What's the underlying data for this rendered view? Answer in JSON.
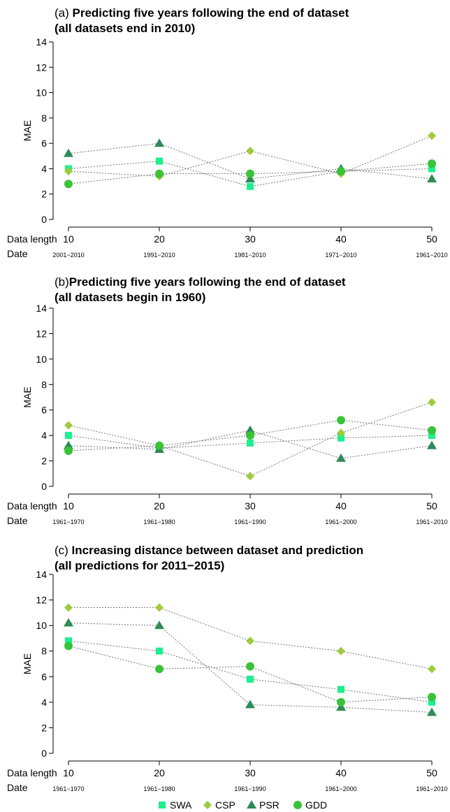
{
  "colors": {
    "SWA": "#1cf08f",
    "CSP": "#9ccc3c",
    "PSR": "#2e8b57",
    "GDD": "#39c339"
  },
  "legend": {
    "items": [
      {
        "name": "SWA",
        "marker": "square"
      },
      {
        "name": "CSP",
        "marker": "diamond"
      },
      {
        "name": "PSR",
        "marker": "triangle"
      },
      {
        "name": "GDD",
        "marker": "circle"
      }
    ]
  },
  "chart_data": [
    {
      "type": "line",
      "title_prefix": "(a) ",
      "title_line1": "Predicting five years following the end of dataset",
      "title_line2": "(all datasets end in 2010)",
      "ylabel": "MAE",
      "row1_label": "Data length",
      "row2_label": "Date",
      "ylim": [
        0,
        14
      ],
      "yticks": [
        "0",
        "2",
        "4",
        "6",
        "8",
        "10",
        "12",
        "14"
      ],
      "x": [
        10,
        20,
        30,
        40,
        50
      ],
      "xtick_labels": [
        "10",
        "20",
        "30",
        "40",
        "50"
      ],
      "dates": [
        "2001−2010",
        "1991−2010",
        "1981−2010",
        "1971−2010",
        "1961−2010"
      ],
      "grid": false,
      "series": [
        {
          "name": "SWA",
          "values": [
            4.0,
            4.6,
            2.6,
            3.8,
            4.0
          ]
        },
        {
          "name": "CSP",
          "values": [
            3.8,
            3.4,
            5.4,
            3.6,
            6.6
          ]
        },
        {
          "name": "PSR",
          "values": [
            5.2,
            6.0,
            3.2,
            4.0,
            3.2
          ]
        },
        {
          "name": "GDD",
          "values": [
            2.8,
            3.6,
            3.6,
            3.8,
            4.4
          ]
        }
      ]
    },
    {
      "type": "line",
      "title_prefix": "(b)",
      "title_line1": "Predicting five years following the end of dataset",
      "title_line2": "(all datasets begin in 1960)",
      "ylabel": "MAE",
      "row1_label": "Data length",
      "row2_label": "Date",
      "ylim": [
        0,
        14
      ],
      "yticks": [
        "0",
        "2",
        "4",
        "6",
        "8",
        "10",
        "12",
        "14"
      ],
      "x": [
        10,
        20,
        30,
        40,
        50
      ],
      "xtick_labels": [
        "10",
        "20",
        "30",
        "40",
        "50"
      ],
      "dates": [
        "1961−1970",
        "1961−1980",
        "1961−1990",
        "1961−2000",
        "1961−2010"
      ],
      "grid": false,
      "series": [
        {
          "name": "SWA",
          "values": [
            4.0,
            3.0,
            3.4,
            3.8,
            4.0
          ]
        },
        {
          "name": "CSP",
          "values": [
            4.8,
            3.2,
            0.8,
            4.2,
            6.6
          ]
        },
        {
          "name": "PSR",
          "values": [
            3.2,
            2.9,
            4.4,
            2.2,
            3.2
          ]
        },
        {
          "name": "GDD",
          "values": [
            2.8,
            3.2,
            4.0,
            5.2,
            4.4
          ]
        }
      ]
    },
    {
      "type": "line",
      "title_prefix": "(c) ",
      "title_line1": "Increasing distance between dataset and prediction",
      "title_line2": "(all predictions for 2011−2015)",
      "ylabel": "MAE",
      "row1_label": "Data length",
      "row2_label": "Date",
      "ylim": [
        0,
        14
      ],
      "yticks": [
        "0",
        "2",
        "4",
        "6",
        "8",
        "10",
        "12",
        "14"
      ],
      "x": [
        10,
        20,
        30,
        40,
        50
      ],
      "xtick_labels": [
        "10",
        "20",
        "30",
        "40",
        "50"
      ],
      "dates": [
        "1961−1970",
        "1961−1980",
        "1961−1990",
        "1961−2000",
        "1961−2010"
      ],
      "grid": false,
      "series": [
        {
          "name": "SWA",
          "values": [
            8.8,
            8.0,
            5.8,
            5.0,
            4.0
          ]
        },
        {
          "name": "CSP",
          "values": [
            11.4,
            11.4,
            8.8,
            8.0,
            6.6
          ]
        },
        {
          "name": "PSR",
          "values": [
            10.2,
            10.0,
            3.8,
            3.6,
            3.2
          ]
        },
        {
          "name": "GDD",
          "values": [
            8.4,
            6.6,
            6.8,
            4.0,
            4.4
          ]
        }
      ]
    }
  ]
}
